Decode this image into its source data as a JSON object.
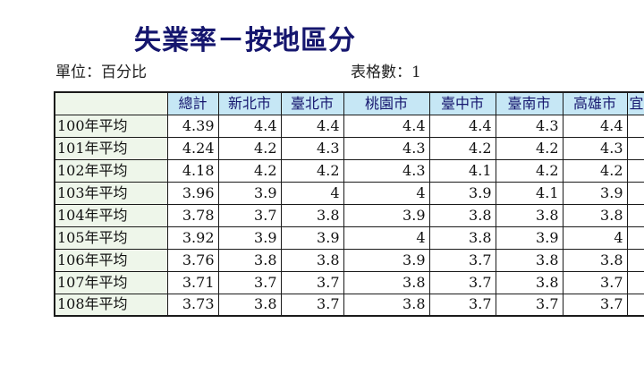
{
  "title": "失業率－按地區分",
  "unit_label": "單位：百分比",
  "table_count_label": "表格數：1",
  "table": {
    "columns": [
      "總計",
      "新北市",
      "臺北市",
      "桃園市",
      "臺中市",
      "臺南市",
      "高雄市",
      "宜"
    ],
    "rows": [
      {
        "label": "100年平均",
        "values": [
          "4.39",
          "4.4",
          "4.4",
          "4.4",
          "4.4",
          "4.3",
          "4.4",
          ""
        ]
      },
      {
        "label": "101年平均",
        "values": [
          "4.24",
          "4.2",
          "4.3",
          "4.3",
          "4.2",
          "4.2",
          "4.3",
          ""
        ]
      },
      {
        "label": "102年平均",
        "values": [
          "4.18",
          "4.2",
          "4.2",
          "4.3",
          "4.1",
          "4.2",
          "4.2",
          ""
        ]
      },
      {
        "label": "103年平均",
        "values": [
          "3.96",
          "3.9",
          "4",
          "4",
          "3.9",
          "4.1",
          "3.9",
          ""
        ]
      },
      {
        "label": "104年平均",
        "values": [
          "3.78",
          "3.7",
          "3.8",
          "3.9",
          "3.8",
          "3.8",
          "3.8",
          ""
        ]
      },
      {
        "label": "105年平均",
        "values": [
          "3.92",
          "3.9",
          "3.9",
          "4",
          "3.8",
          "3.9",
          "4",
          ""
        ]
      },
      {
        "label": "106年平均",
        "values": [
          "3.76",
          "3.8",
          "3.8",
          "3.9",
          "3.7",
          "3.8",
          "3.8",
          ""
        ]
      },
      {
        "label": "107年平均",
        "values": [
          "3.71",
          "3.7",
          "3.7",
          "3.8",
          "3.7",
          "3.8",
          "3.7",
          ""
        ]
      },
      {
        "label": "108年平均",
        "values": [
          "3.73",
          "3.8",
          "3.7",
          "3.8",
          "3.7",
          "3.7",
          "3.7",
          ""
        ]
      }
    ]
  }
}
